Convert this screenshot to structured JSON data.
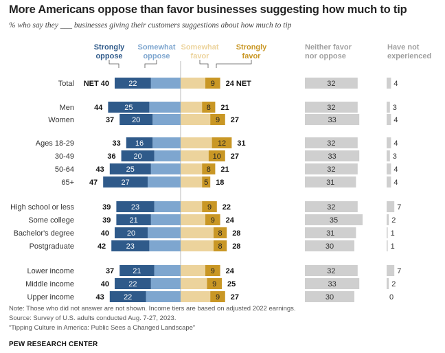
{
  "title": "More Americans oppose than favor businesses suggesting how much to tip",
  "subtitle": "% who say they ___ businesses giving their customers suggestions about how much to tip",
  "colors": {
    "strongly_oppose": "#2f5a8a",
    "somewhat_oppose": "#7ea6cf",
    "somewhat_favor": "#ecd39c",
    "strongly_favor": "#c99725",
    "neither": "#cfcfcf",
    "not_experienced": "#cfcfcf"
  },
  "chart_data": {
    "type": "bar",
    "column_headers": {
      "strongly_oppose": [
        "Strongly",
        "oppose"
      ],
      "somewhat_oppose": [
        "Somewhat",
        "oppose"
      ],
      "somewhat_favor": [
        "Somewhat",
        "favor"
      ],
      "strongly_favor": [
        "Strongly",
        "favor"
      ],
      "neither": [
        "Neither favor",
        "nor oppose"
      ],
      "not_experienced": [
        "Have not",
        "experienced"
      ]
    },
    "net_label": "NET",
    "rows": [
      {
        "label": "Total",
        "net_oppose": 40,
        "strongly_oppose": 22,
        "somewhat_oppose": 18,
        "somewhat_favor": 15,
        "strongly_favor": 9,
        "net_favor": 24,
        "neither": 32,
        "not_experienced": 4
      },
      {
        "label": "Men",
        "net_oppose": 44,
        "strongly_oppose": 25,
        "somewhat_oppose": 19,
        "somewhat_favor": 13,
        "strongly_favor": 8,
        "net_favor": 21,
        "neither": 32,
        "not_experienced": 3
      },
      {
        "label": "Women",
        "net_oppose": 37,
        "strongly_oppose": 20,
        "somewhat_oppose": 17,
        "somewhat_favor": 18,
        "strongly_favor": 9,
        "net_favor": 27,
        "neither": 33,
        "not_experienced": 4
      },
      {
        "label": "Ages 18-29",
        "net_oppose": 33,
        "strongly_oppose": 16,
        "somewhat_oppose": 17,
        "somewhat_favor": 19,
        "strongly_favor": 12,
        "net_favor": 31,
        "neither": 32,
        "not_experienced": 4
      },
      {
        "label": "30-49",
        "net_oppose": 36,
        "strongly_oppose": 20,
        "somewhat_oppose": 16,
        "somewhat_favor": 17,
        "strongly_favor": 10,
        "net_favor": 27,
        "neither": 33,
        "not_experienced": 3
      },
      {
        "label": "50-64",
        "net_oppose": 43,
        "strongly_oppose": 25,
        "somewhat_oppose": 18,
        "somewhat_favor": 13,
        "strongly_favor": 8,
        "net_favor": 21,
        "neither": 32,
        "not_experienced": 4
      },
      {
        "label": "65+",
        "net_oppose": 47,
        "strongly_oppose": 27,
        "somewhat_oppose": 20,
        "somewhat_favor": 13,
        "strongly_favor": 5,
        "net_favor": 18,
        "neither": 31,
        "not_experienced": 4
      },
      {
        "label": "High school or less",
        "net_oppose": 39,
        "strongly_oppose": 23,
        "somewhat_oppose": 16,
        "somewhat_favor": 13,
        "strongly_favor": 9,
        "net_favor": 22,
        "neither": 32,
        "not_experienced": 7
      },
      {
        "label": "Some college",
        "net_oppose": 39,
        "strongly_oppose": 21,
        "somewhat_oppose": 18,
        "somewhat_favor": 15,
        "strongly_favor": 9,
        "net_favor": 24,
        "neither": 35,
        "not_experienced": 2
      },
      {
        "label": "Bachelor's degree",
        "net_oppose": 40,
        "strongly_oppose": 20,
        "somewhat_oppose": 20,
        "somewhat_favor": 20,
        "strongly_favor": 8,
        "net_favor": 28,
        "neither": 31,
        "not_experienced": 1
      },
      {
        "label": "Postgraduate",
        "net_oppose": 42,
        "strongly_oppose": 23,
        "somewhat_oppose": 19,
        "somewhat_favor": 20,
        "strongly_favor": 8,
        "net_favor": 28,
        "neither": 30,
        "not_experienced": 1
      },
      {
        "label": "Lower income",
        "net_oppose": 37,
        "strongly_oppose": 21,
        "somewhat_oppose": 16,
        "somewhat_favor": 15,
        "strongly_favor": 9,
        "net_favor": 24,
        "neither": 32,
        "not_experienced": 7
      },
      {
        "label": "Middle income",
        "net_oppose": 40,
        "strongly_oppose": 22,
        "somewhat_oppose": 18,
        "somewhat_favor": 16,
        "strongly_favor": 9,
        "net_favor": 25,
        "neither": 33,
        "not_experienced": 2
      },
      {
        "label": "Upper income",
        "net_oppose": 43,
        "strongly_oppose": 22,
        "somewhat_oppose": 21,
        "somewhat_favor": 18,
        "strongly_favor": 9,
        "net_favor": 27,
        "neither": 30,
        "not_experienced": 0
      }
    ]
  },
  "notes": {
    "note": "Note: Those who did not answer are not shown. Income tiers are based on adjusted 2022 earnings.",
    "source": "Source: Survey of U.S. adults conducted Aug. 7-27, 2023.",
    "report": "“Tipping Culture in America: Public Sees a Changed Landscape”",
    "org": "PEW RESEARCH CENTER"
  }
}
